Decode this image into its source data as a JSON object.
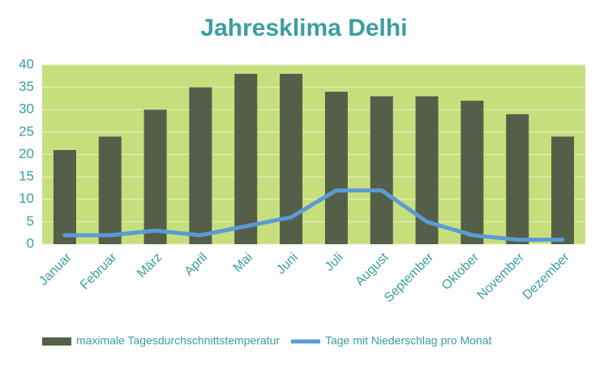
{
  "chart_data": {
    "type": "combo",
    "title": "Jahresklima Delhi",
    "categories": [
      "Januar",
      "Februar",
      "März",
      "April",
      "Mai",
      "Juni",
      "Juli",
      "August",
      "September",
      "Oktober",
      "November",
      "Dezember"
    ],
    "series": [
      {
        "name": "maximale Tagesdurchschnittstemperatur",
        "type": "bar",
        "color": "#545e48",
        "values": [
          21,
          24,
          30,
          35,
          38,
          38,
          34,
          33,
          33,
          32,
          29,
          24
        ]
      },
      {
        "name": "Tage mit Niederschlag pro Monat",
        "type": "line",
        "color": "#5b9bd5",
        "values": [
          2,
          2,
          3,
          2,
          4,
          6,
          12,
          12,
          5,
          2,
          1,
          1
        ]
      }
    ],
    "ylim": [
      0,
      40
    ],
    "yticks": [
      0,
      5,
      10,
      15,
      20,
      25,
      30,
      35,
      40
    ],
    "grid": true,
    "plot_background": "#c6df7c",
    "legend": "bottom"
  }
}
